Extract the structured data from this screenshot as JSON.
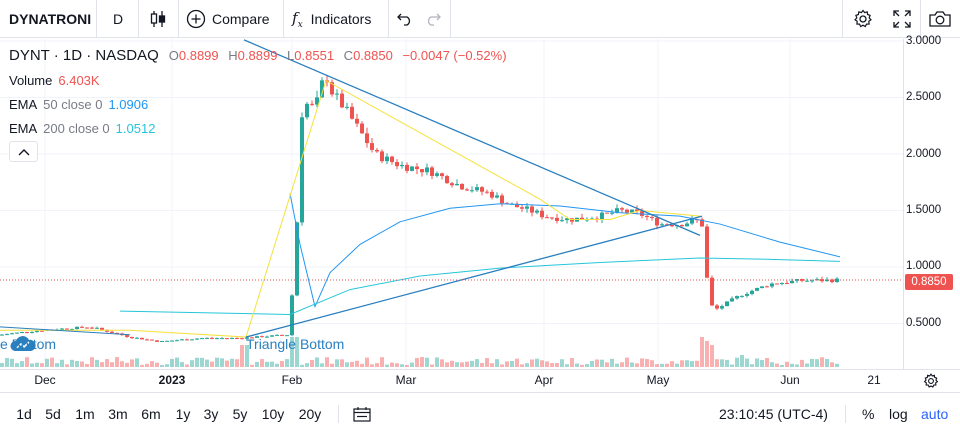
{
  "toolbar": {
    "symbol": "DYNATRONI",
    "interval": "D",
    "compare_label": "Compare",
    "indicators_label": "Indicators"
  },
  "legend": {
    "title": "DYNT · 1D · NASDAQ",
    "open_key": "O",
    "open": "0.8899",
    "high_key": "H",
    "high": "0.8899",
    "low_key": "L",
    "low": "0.8551",
    "close_key": "C",
    "close": "0.8850",
    "change": "−0.0047 (−0.52%)",
    "volume_label": "Volume",
    "volume_value": "6.403K",
    "ema50_name": "EMA",
    "ema50_params": "50 close 0",
    "ema50_value": "1.0906",
    "ema200_name": "EMA",
    "ema200_params": "200 close 0",
    "ema200_value": "1.0512",
    "ema50_color": "#2196f3",
    "ema200_color": "#26c6da"
  },
  "price_axis": {
    "ticks": [
      "3.0000",
      "2.5000",
      "2.0000",
      "1.5000",
      "1.0000",
      "0.5000"
    ],
    "last_price": "0.8850",
    "last_price_color": "#ef5350"
  },
  "time_axis": {
    "labels": [
      {
        "text": "Dec",
        "bold": false
      },
      {
        "text": "2023",
        "bold": true
      },
      {
        "text": "Feb",
        "bold": false
      },
      {
        "text": "Mar",
        "bold": false
      },
      {
        "text": "Apr",
        "bold": false
      },
      {
        "text": "May",
        "bold": false
      },
      {
        "text": "Jun",
        "bold": false
      },
      {
        "text": "21",
        "bold": false
      }
    ]
  },
  "annotations": {
    "pattern_left": "e Bottom",
    "pattern_right": "Triangle Bottom"
  },
  "bottombar": {
    "ranges": [
      "1d",
      "5d",
      "1m",
      "3m",
      "6m",
      "1y",
      "3y",
      "5y",
      "10y",
      "20y"
    ],
    "clock": "23:10:45 (UTC-4)",
    "percent_label": "%",
    "log_label": "log",
    "auto_label": "auto"
  },
  "colors": {
    "up": "#26a69a",
    "down": "#ef5350",
    "trendline": "#2a7fbf",
    "pattern_line": "#f5e13b",
    "accent": "#2962ff"
  },
  "chart_data": {
    "type": "candlestick",
    "ylim": [
      0.1,
      3.05
    ],
    "price_ticks": [
      0.5,
      1.0,
      1.5,
      2.0,
      2.5,
      3.0
    ],
    "x_tick_labels": [
      "Dec",
      "2023",
      "Feb",
      "Mar",
      "Apr",
      "May",
      "Jun",
      "21"
    ],
    "last_price": 0.885,
    "series": [
      {
        "name": "EMA 50 close 0",
        "last": 1.0906
      },
      {
        "name": "EMA 200 close 0",
        "last": 1.0512
      }
    ],
    "phases": [
      {
        "from": "Nov",
        "to": "end Jan",
        "range": [
          0.3,
          0.48
        ]
      },
      {
        "from": "Feb",
        "to": "Feb",
        "peak": 2.72
      },
      {
        "from": "Feb",
        "to": "May",
        "range": [
          1.35,
          2.5
        ]
      },
      {
        "from": "May",
        "to": "Jun",
        "range": [
          0.55,
          0.95
        ],
        "low": 0.6
      }
    ]
  }
}
